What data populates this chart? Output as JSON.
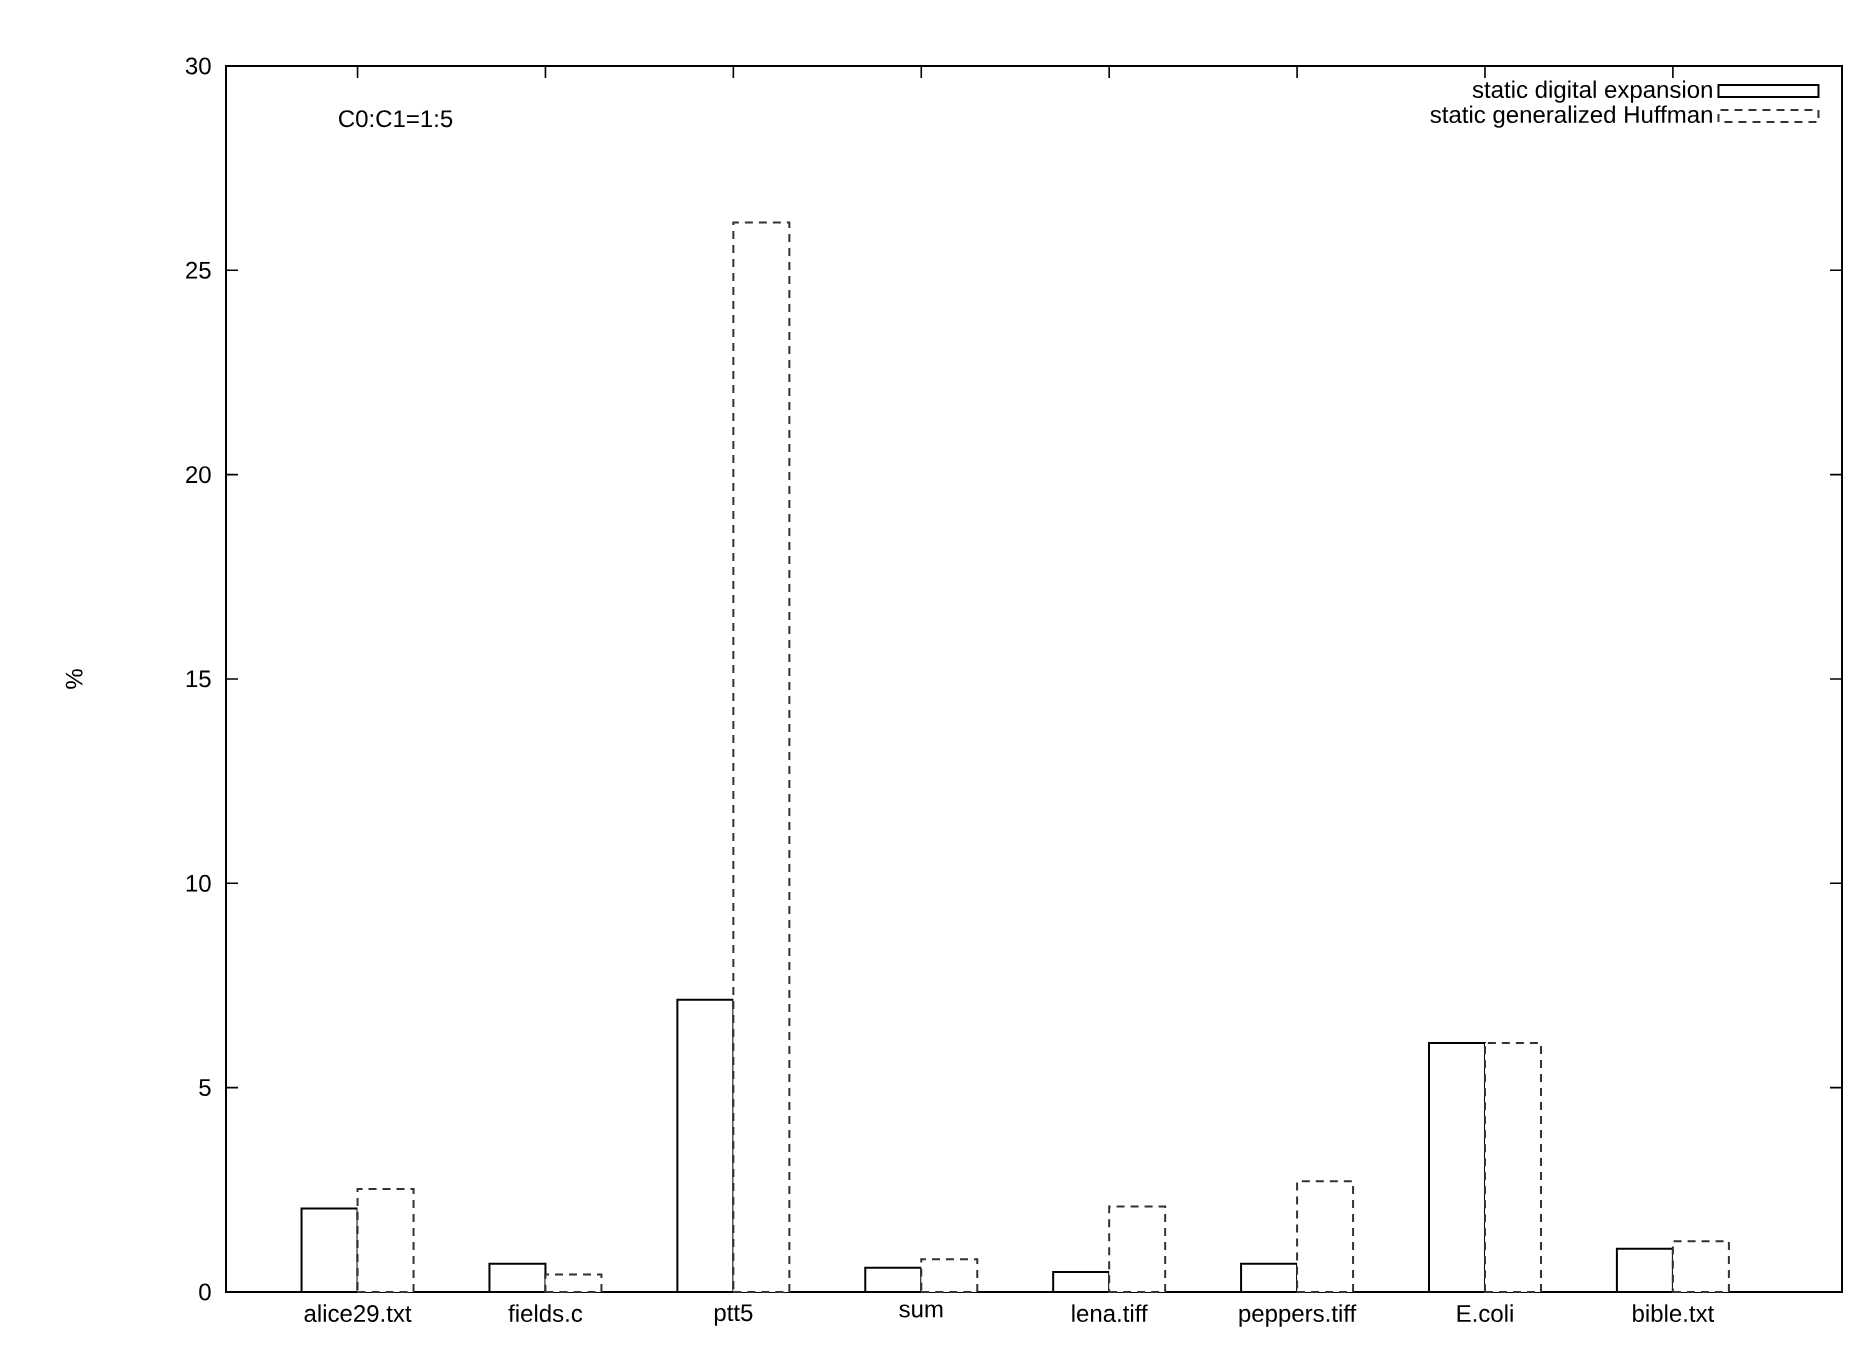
{
  "chart_data": {
    "type": "bar",
    "ylabel": "%",
    "annotations": [
      "C0:C1=1:5"
    ],
    "legend": "top right",
    "categories": [
      "alice29.txt",
      "fields.c",
      "ptt5",
      "sum",
      "lena.tiff",
      "peppers.tiff",
      "E.coli",
      "bible.txt"
    ],
    "series": [
      {
        "name": "static digital expansion",
        "color": "#000000",
        "line_style": "solid",
        "values": [
          2.04,
          0.69,
          7.15,
          0.59,
          0.49,
          0.69,
          6.09,
          1.06
        ]
      },
      {
        "name": "static generalized Huffman",
        "color": "#333333",
        "line_style": "dashed",
        "values": [
          2.52,
          0.43,
          26.17,
          0.8,
          2.09,
          2.71,
          6.09,
          1.24
        ]
      }
    ],
    "ylim": [
      0,
      30
    ],
    "yticks": [
      0,
      5,
      10,
      15,
      20,
      25,
      30
    ]
  }
}
